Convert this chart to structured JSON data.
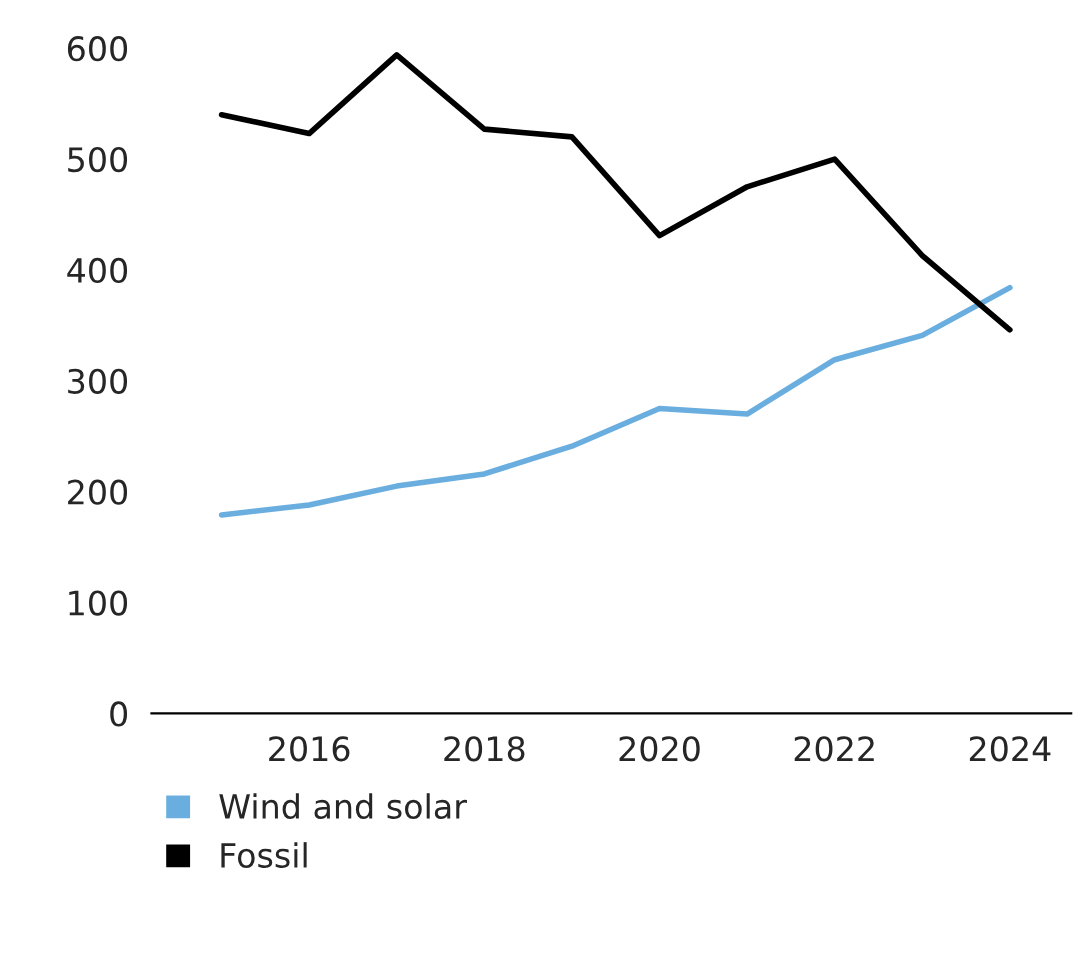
{
  "chart_data": {
    "type": "line",
    "x": [
      2015,
      2016,
      2017,
      2018,
      2019,
      2020,
      2021,
      2022,
      2023,
      2024
    ],
    "series": [
      {
        "name": "Wind and solar",
        "color": "#6aaee0",
        "values": [
          179,
          188,
          205,
          216,
          241,
          275,
          270,
          319,
          341,
          384
        ]
      },
      {
        "name": "Fossil",
        "color": "#000000",
        "values": [
          540,
          523,
          594,
          527,
          520,
          431,
          475,
          500,
          413,
          346
        ]
      }
    ],
    "xlim": [
      2014.2,
      2024.7
    ],
    "xticks": [
      2016,
      2018,
      2020,
      2022,
      2024
    ],
    "ylim": [
      0,
      600
    ],
    "yticks": [
      0,
      100,
      200,
      300,
      400,
      500,
      600
    ],
    "grid": false,
    "legend": "bottom",
    "marker": "none",
    "line_style": "solid"
  }
}
